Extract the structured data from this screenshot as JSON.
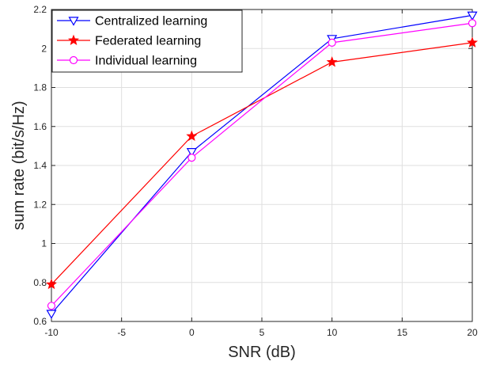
{
  "chart_data": {
    "type": "line",
    "title": "",
    "xlabel": "SNR (dB)",
    "ylabel": "sum rate (bit/s/Hz)",
    "xlim": [
      -10,
      20
    ],
    "ylim": [
      0.6,
      2.2
    ],
    "xticks": [
      -10,
      -5,
      0,
      5,
      10,
      15,
      20
    ],
    "yticks": [
      0.6,
      0.8,
      1,
      1.2,
      1.4,
      1.6,
      1.8,
      2,
      2.2
    ],
    "grid": true,
    "legend_position": "top-left",
    "x": [
      -10,
      0,
      10,
      20
    ],
    "series": [
      {
        "name": "Centralized learning",
        "values": [
          0.64,
          1.47,
          2.05,
          2.17
        ],
        "color": "#0000ff",
        "marker": "triangle-down"
      },
      {
        "name": "Federated learning",
        "values": [
          0.79,
          1.55,
          1.93,
          2.03
        ],
        "color": "#ff0000",
        "marker": "star"
      },
      {
        "name": "Individual learning",
        "values": [
          0.68,
          1.44,
          2.03,
          2.13
        ],
        "color": "#ff00ff",
        "marker": "circle"
      }
    ]
  }
}
